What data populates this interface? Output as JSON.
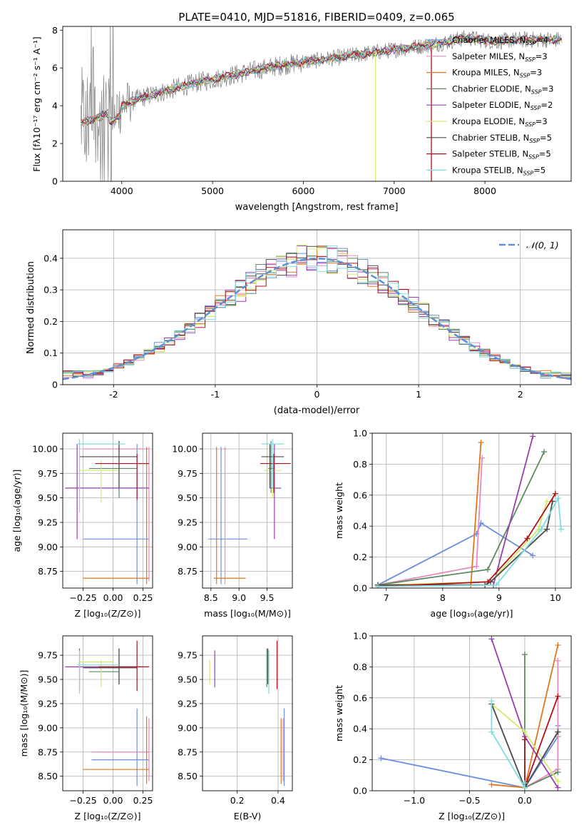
{
  "colors": {
    "chab_miles": "#6a8fe0",
    "salp_miles": "#e88bbf",
    "krou_miles": "#e07820",
    "chab_elodie": "#5c8a60",
    "salp_elodie": "#9a3db0",
    "krou_elodie": "#d2ec6a",
    "chab_stelib": "#4a4a4a",
    "salp_stelib": "#b0101a",
    "krou_stelib": "#7fdde0",
    "gauss": "#5b8fd6",
    "data": "#808080"
  },
  "chart_data": [
    {
      "id": "spectrum",
      "type": "line",
      "title": "PLATE=0410, MJD=51816, FIBERID=0409, z=0.065",
      "xlabel": "wavelength [Angstrom, rest frame]",
      "ylabel": "Flux [fλ10⁻¹⁷ erg cm⁻² s⁻¹ A⁻¹]",
      "xlim": [
        3350,
        8950
      ],
      "ylim": [
        0,
        8.2
      ],
      "xticks": [
        4000,
        5000,
        6000,
        7000,
        8000
      ],
      "yticks": [
        0,
        2,
        4,
        6,
        8
      ],
      "continuum": {
        "x": [
          3550,
          3700,
          3850,
          4000,
          4200,
          4500,
          4800,
          5100,
          5400,
          5700,
          6000,
          6300,
          6600,
          6900,
          7200,
          7500,
          7800,
          8100,
          8400,
          8850
        ],
        "y": [
          3.1,
          3.3,
          3.6,
          4.0,
          4.4,
          4.8,
          5.2,
          5.5,
          5.8,
          6.1,
          6.3,
          6.5,
          6.7,
          6.9,
          7.1,
          7.3,
          7.6,
          7.4,
          7.5,
          7.5
        ]
      },
      "legend": [
        "Chabrier MILES, N_SSP=4",
        "Salpeter MILES, N_SSP=3",
        "Kroupa MILES, N_SSP=3",
        "Chabrier ELODIE, N_SSP=3",
        "Salpeter ELODIE, N_SSP=2",
        "Kroupa ELODIE, N_SSP=3",
        "Chabrier STELIB, N_SSP=5",
        "Salpeter STELIB, N_SSP=5",
        "Kroupa STELIB, N_SSP=5"
      ],
      "legend_placement": "right"
    },
    {
      "id": "residuals",
      "type": "line",
      "xlabel": "(data-model)/error",
      "ylabel": "Normed distribution",
      "xlim": [
        -2.5,
        2.5
      ],
      "ylim": [
        0,
        0.49
      ],
      "xticks": [
        -2,
        -1,
        0,
        1,
        2
      ],
      "yticks": [
        0.0,
        0.1,
        0.2,
        0.3,
        0.4
      ],
      "legend": [
        "𝒩(0, 1)"
      ],
      "legend_placement": "top-right",
      "grid": true
    },
    {
      "id": "age_vs_Z",
      "type": "scatter",
      "xlabel": "Z [log₁₀(Z/Z⊙)]",
      "ylabel": "age  [log₁₀(age/yr)]",
      "xlim": [
        -0.42,
        0.33
      ],
      "ylim": [
        8.58,
        10.16
      ],
      "xticks": [
        -0.25,
        0.0,
        0.25
      ],
      "xticklabels": [
        "−0.25",
        "0.00",
        "0.25"
      ],
      "yticks": [
        8.75,
        9.0,
        9.25,
        9.5,
        9.75,
        10.0
      ],
      "yticklabels": [
        "8.75",
        "9.00",
        "9.25",
        "9.50",
        "9.75",
        "10.00"
      ],
      "grid": true,
      "points": [
        {
          "s": "chab_miles",
          "x": 0.2,
          "y": 9.08,
          "xe": [
            -0.25,
            0.3
          ],
          "ye": [
            8.62,
            10.05
          ]
        },
        {
          "s": "salp_miles",
          "x": 0.3,
          "y": 10.0,
          "xe": [
            -0.25,
            0.3
          ],
          "ye": [
            8.65,
            10.02
          ]
        },
        {
          "s": "krou_miles",
          "x": 0.28,
          "y": 8.68,
          "xe": [
            -0.25,
            0.3
          ],
          "ye": [
            8.62,
            10.02
          ]
        },
        {
          "s": "chab_elodie",
          "x": 0.05,
          "y": 9.8,
          "xe": [
            -0.2,
            0.2
          ],
          "ye": [
            9.5,
            10.08
          ]
        },
        {
          "s": "salp_elodie",
          "x": -0.3,
          "y": 9.6,
          "xe": [
            -0.4,
            0.3
          ],
          "ye": [
            9.08,
            10.05
          ]
        },
        {
          "s": "krou_elodie",
          "x": -0.1,
          "y": 9.78,
          "xe": [
            -0.28,
            0.05
          ],
          "ye": [
            9.45,
            9.88
          ]
        },
        {
          "s": "chab_stelib",
          "x": 0.05,
          "y": 9.92,
          "xe": [
            -0.28,
            0.2
          ],
          "ye": [
            9.6,
            10.08
          ]
        },
        {
          "s": "salp_stelib",
          "x": 0.2,
          "y": 9.85,
          "xe": [
            -0.15,
            0.3
          ],
          "ye": [
            9.48,
            9.95
          ]
        },
        {
          "s": "krou_stelib",
          "x": -0.28,
          "y": 10.05,
          "xe": [
            -0.3,
            0.1
          ],
          "ye": [
            9.35,
            10.1
          ]
        }
      ]
    },
    {
      "id": "age_vs_mass",
      "type": "scatter",
      "xlabel": "mass [log₁₀(M/M⊙)]",
      "xlim": [
        8.35,
        9.95
      ],
      "ylim": [
        8.58,
        10.16
      ],
      "xticks": [
        8.5,
        9.0,
        9.5
      ],
      "xticklabels": [
        "8.5",
        "9.0",
        "9.5"
      ],
      "yticks": [
        8.75,
        9.0,
        9.25,
        9.5,
        9.75,
        10.0
      ],
      "yticklabels": [
        "8.75",
        "9.00",
        "9.25",
        "9.50",
        "9.75",
        "10.00"
      ],
      "grid": true,
      "points": [
        {
          "s": "chab_miles",
          "x": 8.68,
          "y": 9.08,
          "xe": [
            8.45,
            9.15
          ],
          "ye": [
            8.62,
            10.02
          ]
        },
        {
          "s": "salp_miles",
          "x": 8.75,
          "y": 10.0,
          "xe": [
            8.72,
            8.78
          ],
          "ye": [
            8.62,
            10.02
          ]
        },
        {
          "s": "krou_miles",
          "x": 8.6,
          "y": 8.68,
          "xe": [
            8.55,
            9.12
          ],
          "ye": [
            8.62,
            10.02
          ]
        },
        {
          "s": "chab_elodie",
          "x": 9.57,
          "y": 9.8,
          "xe": [
            9.52,
            9.62
          ],
          "ye": [
            9.55,
            10.08
          ]
        },
        {
          "s": "salp_elodie",
          "x": 9.63,
          "y": 9.6,
          "xe": [
            9.55,
            9.75
          ],
          "ye": [
            9.08,
            10.05
          ]
        },
        {
          "s": "krou_elodie",
          "x": 9.6,
          "y": 9.78,
          "xe": [
            9.45,
            9.75
          ],
          "ye": [
            9.5,
            9.88
          ]
        },
        {
          "s": "chab_stelib",
          "x": 9.55,
          "y": 9.92,
          "xe": [
            9.4,
            9.8
          ],
          "ye": [
            9.6,
            10.05
          ]
        },
        {
          "s": "salp_stelib",
          "x": 9.62,
          "y": 9.85,
          "xe": [
            9.38,
            9.92
          ],
          "ye": [
            9.55,
            9.95
          ]
        },
        {
          "s": "krou_stelib",
          "x": 9.6,
          "y": 10.05,
          "xe": [
            9.4,
            9.8
          ],
          "ye": [
            9.6,
            10.1
          ]
        }
      ]
    },
    {
      "id": "weight_vs_age",
      "type": "line",
      "xlabel": "age  [log₁₀(age/yr)]",
      "ylabel": "mass weight",
      "xlim": [
        6.75,
        10.28
      ],
      "ylim": [
        0,
        1
      ],
      "xticks": [
        7,
        8,
        9,
        10
      ],
      "xticklabels": [
        "7",
        "8",
        "9",
        "10"
      ],
      "yticks": [
        0.0,
        0.2,
        0.4,
        0.6,
        0.8,
        1.0
      ],
      "yticklabels": [
        "0.0",
        "0.2",
        "0.4",
        "0.6",
        "0.8",
        "1.0"
      ],
      "grid": true,
      "series": [
        {
          "s": "chab_miles",
          "x": [
            6.85,
            8.6,
            8.68,
            9.6
          ],
          "y": [
            0.02,
            0.35,
            0.42,
            0.21
          ]
        },
        {
          "s": "salp_miles",
          "x": [
            6.85,
            8.6,
            8.7
          ],
          "y": [
            0.02,
            0.14,
            0.84
          ]
        },
        {
          "s": "krou_miles",
          "x": [
            6.85,
            8.5,
            8.68
          ],
          "y": [
            0.02,
            0.02,
            0.94
          ]
        },
        {
          "s": "chab_elodie",
          "x": [
            6.85,
            8.8,
            9.8
          ],
          "y": [
            0.02,
            0.12,
            0.88
          ]
        },
        {
          "s": "salp_elodie",
          "x": [
            8.9,
            9.6
          ],
          "y": [
            0.02,
            0.98
          ]
        },
        {
          "s": "krou_elodie",
          "x": [
            6.85,
            8.85,
            9.7,
            9.85
          ],
          "y": [
            0.02,
            0.04,
            0.38,
            0.56
          ]
        },
        {
          "s": "chab_stelib",
          "x": [
            6.85,
            8.75,
            8.85,
            9.85,
            9.95
          ],
          "y": [
            0.02,
            0.02,
            0.04,
            0.38,
            0.56
          ]
        },
        {
          "s": "salp_stelib",
          "x": [
            6.85,
            8.8,
            9.5,
            10.0
          ],
          "y": [
            0.01,
            0.04,
            0.32,
            0.61
          ]
        },
        {
          "s": "krou_stelib",
          "x": [
            6.85,
            8.95,
            9.75,
            10.05,
            10.1
          ],
          "y": [
            0.01,
            0.02,
            0.38,
            0.58,
            0.38
          ]
        }
      ]
    },
    {
      "id": "mass_vs_Z",
      "type": "scatter",
      "xlabel": "Z [log₁₀(Z/Z⊙)]",
      "ylabel": "mass [log₁₀(M/M⊙)]",
      "xlim": [
        -0.42,
        0.33
      ],
      "ylim": [
        8.35,
        9.95
      ],
      "xticks": [
        -0.25,
        0.0,
        0.25
      ],
      "xticklabels": [
        "−0.25",
        "0.00",
        "0.25"
      ],
      "yticks": [
        8.5,
        8.75,
        9.0,
        9.25,
        9.5,
        9.75
      ],
      "yticklabels": [
        "8.50",
        "8.75",
        "9.00",
        "9.25",
        "9.50",
        "9.75"
      ],
      "grid": true,
      "points": [
        {
          "s": "chab_miles",
          "x": 0.2,
          "y": 8.67,
          "xe": [
            -0.18,
            0.3
          ],
          "ye": [
            8.4,
            9.2
          ]
        },
        {
          "s": "salp_miles",
          "x": 0.3,
          "y": 8.75,
          "xe": [
            -0.18,
            0.3
          ],
          "ye": [
            8.45,
            9.1
          ]
        },
        {
          "s": "krou_miles",
          "x": 0.28,
          "y": 8.57,
          "xe": [
            -0.25,
            0.3
          ],
          "ye": [
            8.42,
            9.12
          ]
        },
        {
          "s": "chab_elodie",
          "x": 0.05,
          "y": 9.58,
          "xe": [
            -0.2,
            0.05
          ],
          "ye": [
            9.45,
            9.82
          ]
        },
        {
          "s": "salp_elodie",
          "x": -0.28,
          "y": 9.63,
          "xe": [
            -0.4,
            0.25
          ],
          "ye": [
            9.4,
            9.82
          ]
        },
        {
          "s": "krou_elodie",
          "x": -0.1,
          "y": 9.68,
          "xe": [
            -0.28,
            0.0
          ],
          "ye": [
            9.42,
            9.7
          ]
        },
        {
          "s": "chab_stelib",
          "x": 0.05,
          "y": 9.62,
          "xe": [
            -0.25,
            0.2
          ],
          "ye": [
            9.45,
            9.82
          ]
        },
        {
          "s": "salp_stelib",
          "x": 0.2,
          "y": 9.63,
          "xe": [
            -0.12,
            0.3
          ],
          "ye": [
            9.38,
            9.9
          ]
        },
        {
          "s": "krou_stelib",
          "x": -0.28,
          "y": 9.65,
          "xe": [
            -0.3,
            0.05
          ],
          "ye": [
            9.35,
            9.8
          ]
        }
      ]
    },
    {
      "id": "mass_vs_ebv",
      "type": "scatter",
      "xlabel": "E(B-V)",
      "xlim": [
        0.03,
        0.47
      ],
      "ylim": [
        8.35,
        9.95
      ],
      "xticks": [
        0.2,
        0.4
      ],
      "xticklabels": [
        "0.2",
        "0.4"
      ],
      "yticks": [
        8.5,
        8.75,
        9.0,
        9.25,
        9.5,
        9.75
      ],
      "yticklabels": [
        "8.50",
        "8.75",
        "9.00",
        "9.25",
        "9.50",
        "9.75"
      ],
      "grid": true,
      "points": [
        {
          "s": "chab_miles",
          "x": 0.43,
          "ye": [
            8.4,
            9.2
          ]
        },
        {
          "s": "salp_miles",
          "x": 0.425,
          "ye": [
            8.45,
            9.1
          ]
        },
        {
          "s": "krou_miles",
          "x": 0.415,
          "ye": [
            8.42,
            9.1
          ]
        },
        {
          "s": "chab_elodie",
          "x": 0.345,
          "ye": [
            9.42,
            9.82
          ]
        },
        {
          "s": "salp_elodie",
          "x": 0.09,
          "ye": [
            9.42,
            9.8
          ]
        },
        {
          "s": "krou_elodie",
          "x": 0.065,
          "ye": [
            9.45,
            9.7
          ]
        },
        {
          "s": "chab_stelib",
          "x": 0.35,
          "ye": [
            9.45,
            9.82
          ]
        },
        {
          "s": "salp_stelib",
          "x": 0.395,
          "ye": [
            9.4,
            9.9
          ]
        },
        {
          "s": "krou_stelib",
          "x": 0.355,
          "ye": [
            9.35,
            9.8
          ]
        }
      ]
    },
    {
      "id": "weight_vs_Z",
      "type": "line",
      "xlabel": "Z [log₁₀(Z/Z⊙)]",
      "ylabel": "mass weight",
      "xlim": [
        -1.38,
        0.42
      ],
      "ylim": [
        0,
        1
      ],
      "xticks": [
        -1.0,
        -0.5,
        0.0
      ],
      "xticklabels": [
        "−1.0",
        "−0.5",
        "0.0"
      ],
      "yticks": [
        0.0,
        0.2,
        0.4,
        0.6,
        0.8,
        1.0
      ],
      "yticklabels": [
        "0.0",
        "0.2",
        "0.4",
        "0.6",
        "0.8",
        "1.0"
      ],
      "grid": true,
      "series": [
        {
          "s": "chab_miles",
          "x": [
            -1.3,
            0.0,
            0.3,
            0.3
          ],
          "y": [
            0.21,
            0.02,
            0.35,
            0.42
          ]
        },
        {
          "s": "salp_miles",
          "x": [
            0.0,
            0.3,
            0.3,
            0.3
          ],
          "y": [
            0.02,
            0.14,
            0.35,
            0.84
          ]
        },
        {
          "s": "krou_miles",
          "x": [
            -0.3,
            0.0,
            0.3
          ],
          "y": [
            0.04,
            0.02,
            0.94
          ]
        },
        {
          "s": "chab_elodie",
          "x": [
            0.0,
            0.0,
            0.3
          ],
          "y": [
            0.88,
            0.02,
            0.12
          ]
        },
        {
          "s": "salp_elodie",
          "x": [
            -0.3,
            0.0,
            0.3
          ],
          "y": [
            0.98,
            0.35,
            0.02
          ]
        },
        {
          "s": "krou_elodie",
          "x": [
            -0.3,
            0.0,
            0.3
          ],
          "y": [
            0.56,
            0.38,
            0.06
          ]
        },
        {
          "s": "chab_stelib",
          "x": [
            -0.3,
            0.0,
            0.3
          ],
          "y": [
            0.56,
            0.02,
            0.38
          ]
        },
        {
          "s": "salp_stelib",
          "x": [
            0.0,
            0.0,
            0.3
          ],
          "y": [
            0.33,
            0.02,
            0.61
          ]
        },
        {
          "s": "krou_stelib",
          "x": [
            -0.3,
            -0.3,
            0.0,
            0.0
          ],
          "y": [
            0.58,
            0.38,
            0.02,
            0.05
          ]
        }
      ]
    }
  ]
}
